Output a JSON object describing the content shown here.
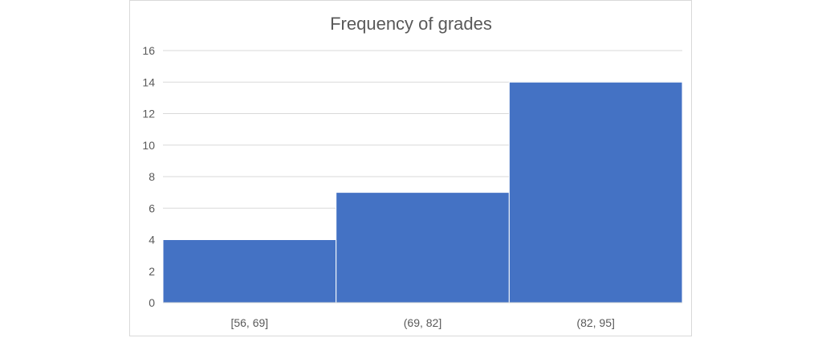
{
  "chart_data": {
    "type": "bar",
    "title": "Frequency of grades",
    "xlabel": "",
    "ylabel": "",
    "categories": [
      "[56, 69]",
      "(69, 82]",
      "(82, 95]"
    ],
    "values": [
      4,
      7,
      14
    ],
    "ylim": [
      0,
      16
    ],
    "yticks": [
      0,
      2,
      4,
      6,
      8,
      10,
      12,
      14,
      16
    ],
    "grid": true,
    "legend": "none",
    "bar_color": "#4472c4",
    "grid_color": "#d9d9d9",
    "text_color": "#595959"
  }
}
